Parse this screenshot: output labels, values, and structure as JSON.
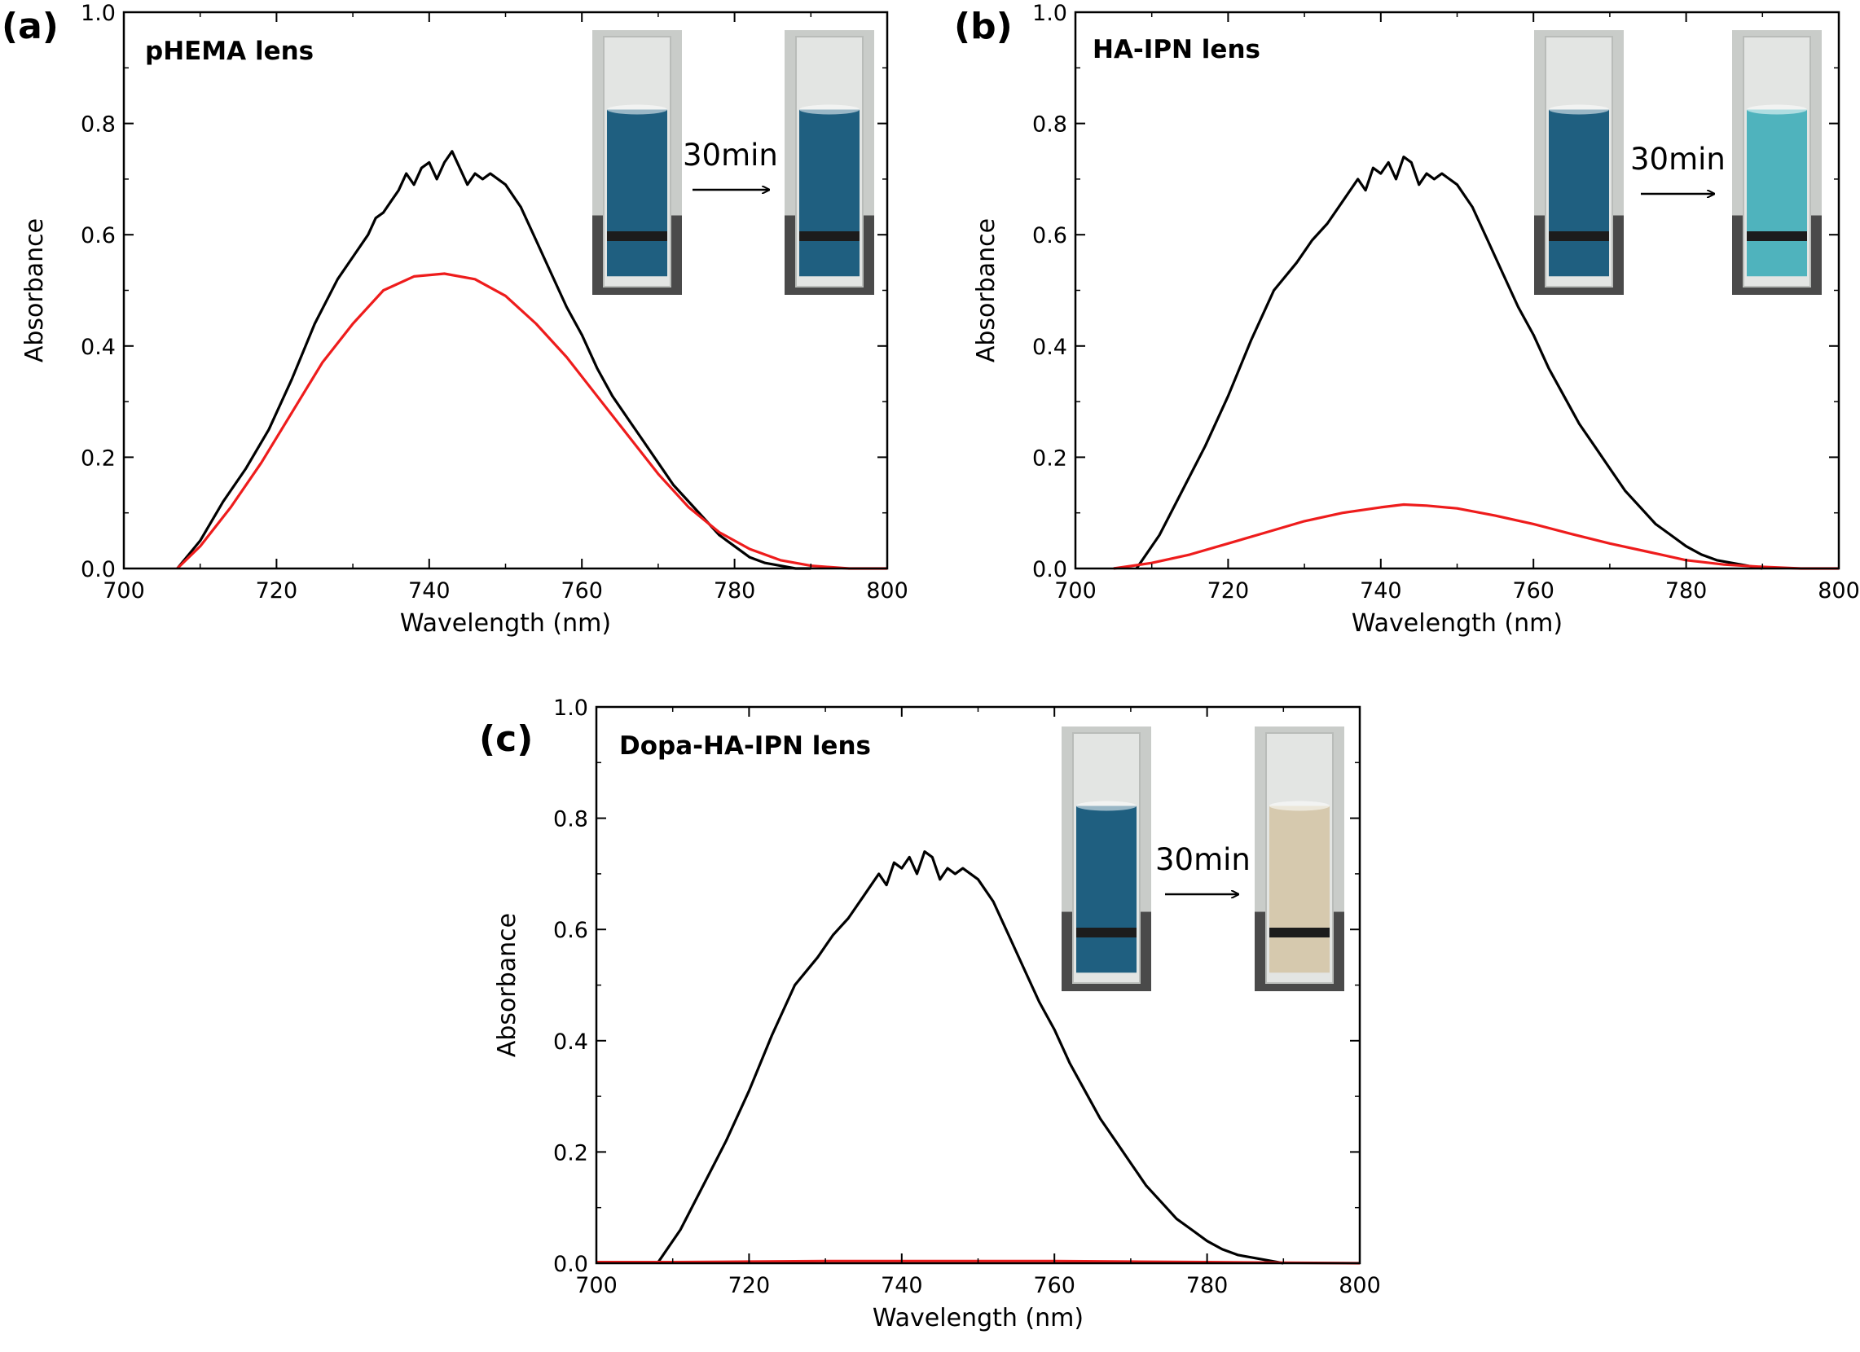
{
  "chart_data": [
    {
      "type": "line",
      "panel_label": "(a)",
      "title": "pHEMA lens",
      "xlabel": "Wavelength (nm)",
      "ylabel": "Absorbance",
      "xlim": [
        700,
        800
      ],
      "ylim": [
        0.0,
        1.0
      ],
      "xticks": [
        "700",
        "720",
        "740",
        "760",
        "780",
        "800"
      ],
      "yticks": [
        "0.0",
        "0.2",
        "0.4",
        "0.6",
        "0.8",
        "1.0"
      ],
      "grid": false,
      "legend": "none",
      "inset": {
        "time_label": "30min",
        "before_color": "#1f5f80",
        "after_color": "#1f5f80"
      },
      "series": [
        {
          "color": "#000000",
          "x": [
            707,
            710,
            713,
            716,
            719,
            722,
            725,
            728,
            730,
            732,
            733,
            734,
            735,
            736,
            737,
            738,
            739,
            740,
            741,
            742,
            743,
            744,
            745,
            746,
            747,
            748,
            750,
            752,
            754,
            756,
            758,
            760,
            762,
            764,
            766,
            768,
            770,
            772,
            774,
            776,
            778,
            780,
            782,
            784,
            786,
            788,
            790
          ],
          "y": [
            0.0,
            0.05,
            0.12,
            0.18,
            0.25,
            0.34,
            0.44,
            0.52,
            0.56,
            0.6,
            0.63,
            0.64,
            0.66,
            0.68,
            0.71,
            0.69,
            0.72,
            0.73,
            0.7,
            0.73,
            0.75,
            0.72,
            0.69,
            0.71,
            0.7,
            0.71,
            0.69,
            0.65,
            0.59,
            0.53,
            0.47,
            0.42,
            0.36,
            0.31,
            0.27,
            0.23,
            0.19,
            0.15,
            0.12,
            0.09,
            0.06,
            0.04,
            0.02,
            0.01,
            0.005,
            0.0,
            0.0
          ]
        },
        {
          "color": "#ee1c1c",
          "x": [
            707,
            710,
            714,
            718,
            722,
            726,
            730,
            734,
            738,
            742,
            746,
            750,
            754,
            758,
            762,
            766,
            770,
            774,
            778,
            782,
            786,
            790,
            795,
            800
          ],
          "y": [
            0.0,
            0.04,
            0.11,
            0.19,
            0.28,
            0.37,
            0.44,
            0.5,
            0.525,
            0.53,
            0.52,
            0.49,
            0.44,
            0.38,
            0.31,
            0.24,
            0.17,
            0.11,
            0.065,
            0.035,
            0.015,
            0.005,
            0.0,
            0.0
          ]
        }
      ]
    },
    {
      "type": "line",
      "panel_label": "(b)",
      "title": "HA-IPN lens",
      "xlabel": "Wavelength (nm)",
      "ylabel": "Absorbance",
      "xlim": [
        700,
        800
      ],
      "ylim": [
        0.0,
        1.0
      ],
      "xticks": [
        "700",
        "720",
        "740",
        "760",
        "780",
        "800"
      ],
      "yticks": [
        "0.0",
        "0.2",
        "0.4",
        "0.6",
        "0.8",
        "1.0"
      ],
      "grid": false,
      "legend": "none",
      "inset": {
        "time_label": "30min",
        "before_color": "#1f5f80",
        "after_color": "#4fb3bd"
      },
      "series": [
        {
          "color": "#000000",
          "x": [
            708,
            711,
            714,
            717,
            720,
            723,
            726,
            729,
            731,
            733,
            735,
            737,
            738,
            739,
            740,
            741,
            742,
            743,
            744,
            745,
            746,
            747,
            748,
            750,
            752,
            754,
            756,
            758,
            760,
            762,
            764,
            766,
            768,
            770,
            772,
            774,
            776,
            778,
            780,
            782,
            784,
            786,
            788,
            790
          ],
          "y": [
            0.0,
            0.06,
            0.14,
            0.22,
            0.31,
            0.41,
            0.5,
            0.55,
            0.59,
            0.62,
            0.66,
            0.7,
            0.68,
            0.72,
            0.71,
            0.73,
            0.7,
            0.74,
            0.73,
            0.69,
            0.71,
            0.7,
            0.71,
            0.69,
            0.65,
            0.59,
            0.53,
            0.47,
            0.42,
            0.36,
            0.31,
            0.26,
            0.22,
            0.18,
            0.14,
            0.11,
            0.08,
            0.06,
            0.04,
            0.025,
            0.015,
            0.01,
            0.005,
            0.0
          ]
        },
        {
          "color": "#ee1c1c",
          "x": [
            705,
            710,
            715,
            720,
            725,
            730,
            735,
            740,
            743,
            746,
            750,
            755,
            760,
            765,
            770,
            775,
            780,
            785,
            790,
            795,
            800
          ],
          "y": [
            0.0,
            0.01,
            0.025,
            0.045,
            0.065,
            0.085,
            0.1,
            0.11,
            0.115,
            0.113,
            0.108,
            0.095,
            0.08,
            0.062,
            0.045,
            0.03,
            0.015,
            0.007,
            0.003,
            0.0,
            0.0
          ]
        }
      ]
    },
    {
      "type": "line",
      "panel_label": "(c)",
      "title": "Dopa-HA-IPN lens",
      "xlabel": "Wavelength (nm)",
      "ylabel": "Absorbance",
      "xlim": [
        700,
        800
      ],
      "ylim": [
        0.0,
        1.0
      ],
      "xticks": [
        "700",
        "720",
        "740",
        "760",
        "780",
        "800"
      ],
      "yticks": [
        "0.0",
        "0.2",
        "0.4",
        "0.6",
        "0.8",
        "1.0"
      ],
      "grid": false,
      "legend": "none",
      "inset": {
        "time_label": "30min",
        "before_color": "#1f5f80",
        "after_color": "#d6c9ae"
      },
      "series": [
        {
          "color": "#000000",
          "x": [
            708,
            711,
            714,
            717,
            720,
            723,
            726,
            729,
            731,
            733,
            735,
            737,
            738,
            739,
            740,
            741,
            742,
            743,
            744,
            745,
            746,
            747,
            748,
            750,
            752,
            754,
            756,
            758,
            760,
            762,
            764,
            766,
            768,
            770,
            772,
            774,
            776,
            778,
            780,
            782,
            784,
            786,
            788,
            790
          ],
          "y": [
            0.0,
            0.06,
            0.14,
            0.22,
            0.31,
            0.41,
            0.5,
            0.55,
            0.59,
            0.62,
            0.66,
            0.7,
            0.68,
            0.72,
            0.71,
            0.73,
            0.7,
            0.74,
            0.73,
            0.69,
            0.71,
            0.7,
            0.71,
            0.69,
            0.65,
            0.59,
            0.53,
            0.47,
            0.42,
            0.36,
            0.31,
            0.26,
            0.22,
            0.18,
            0.14,
            0.11,
            0.08,
            0.06,
            0.04,
            0.025,
            0.015,
            0.01,
            0.005,
            0.0
          ]
        },
        {
          "color": "#ee1c1c",
          "x": [
            700,
            710,
            720,
            730,
            740,
            750,
            760,
            770,
            780,
            790,
            800
          ],
          "y": [
            0.002,
            0.002,
            0.003,
            0.004,
            0.004,
            0.004,
            0.004,
            0.003,
            0.002,
            0.001,
            0.0
          ]
        }
      ]
    }
  ]
}
